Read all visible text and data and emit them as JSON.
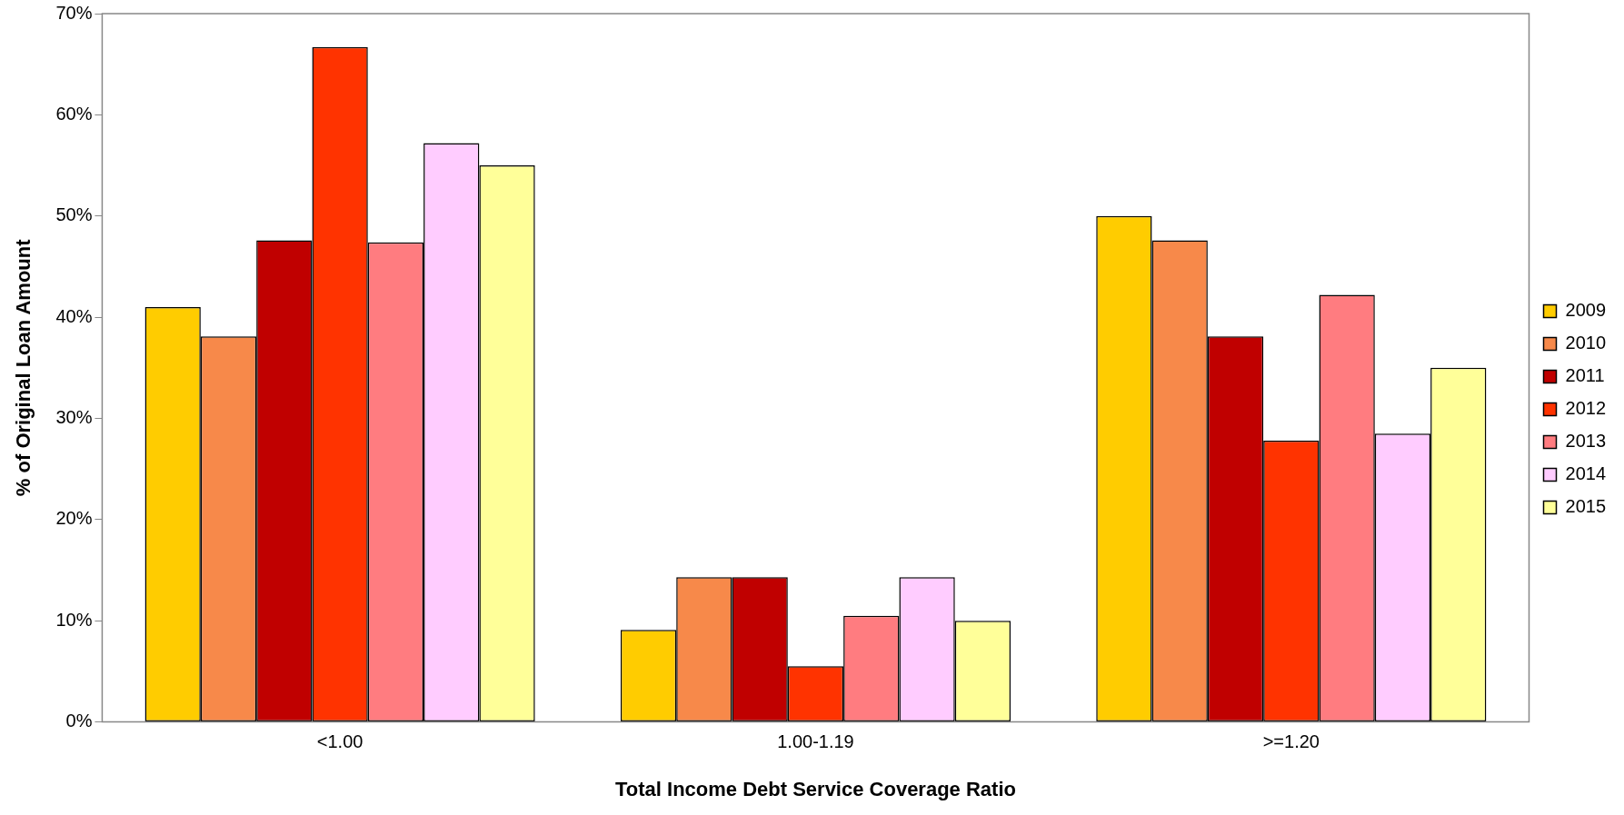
{
  "chart_data": {
    "type": "bar",
    "xlabel": "Total Income Debt Service Coverage Ratio",
    "ylabel": "% of Original Loan Amount",
    "categories": [
      "<1.00",
      "1.00-1.19",
      ">=1.20"
    ],
    "series": [
      {
        "name": "2009",
        "color": "#ffcc00",
        "values": [
          41.0,
          9.1,
          50.0
        ]
      },
      {
        "name": "2010",
        "color": "#f7894a",
        "values": [
          38.1,
          14.3,
          47.6
        ]
      },
      {
        "name": "2011",
        "color": "#c00000",
        "values": [
          47.6,
          14.3,
          38.1
        ]
      },
      {
        "name": "2012",
        "color": "#ff3300",
        "values": [
          66.7,
          5.5,
          27.8
        ]
      },
      {
        "name": "2013",
        "color": "#ff7c80",
        "values": [
          47.4,
          10.5,
          42.2
        ]
      },
      {
        "name": "2014",
        "color": "#ffccff",
        "values": [
          57.2,
          14.3,
          28.5
        ]
      },
      {
        "name": "2015",
        "color": "#ffff99",
        "values": [
          55.0,
          10.0,
          35.0
        ]
      }
    ],
    "ylim": [
      0,
      70
    ],
    "yticks": [
      {
        "value": 0,
        "label": "0%"
      },
      {
        "value": 10,
        "label": "10%"
      },
      {
        "value": 20,
        "label": "20%"
      },
      {
        "value": 30,
        "label": "30%"
      },
      {
        "value": 40,
        "label": "40%"
      },
      {
        "value": 50,
        "label": "50%"
      },
      {
        "value": 60,
        "label": "60%"
      },
      {
        "value": 70,
        "label": "70%"
      }
    ],
    "grid": false,
    "legend": "right"
  }
}
